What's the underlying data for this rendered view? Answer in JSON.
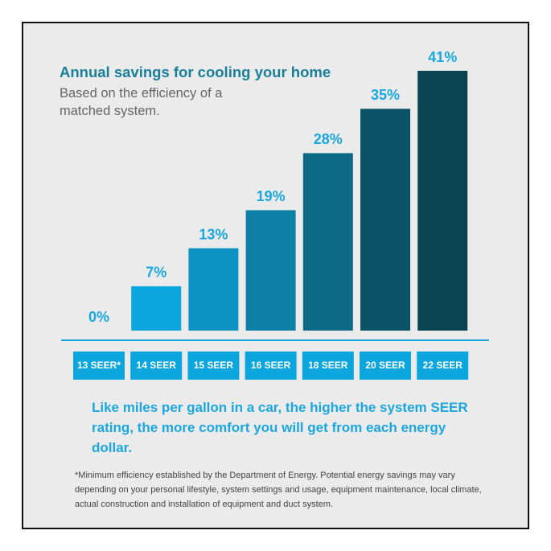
{
  "chart_data": {
    "type": "bar",
    "title": "Annual savings for cooling your home",
    "subtitle": "Based on the efficiency of a matched system.",
    "categories": [
      "13 SEER*",
      "14 SEER",
      "15 SEER",
      "16 SEER",
      "18 SEER",
      "20 SEER",
      "22 SEER"
    ],
    "values": [
      0,
      7,
      13,
      19,
      28,
      35,
      41
    ],
    "value_labels": [
      "0%",
      "7%",
      "13%",
      "19%",
      "28%",
      "35%",
      "41%"
    ],
    "colors": [
      "#0ca6df",
      "#0ca6df",
      "#0c92c3",
      "#0e7fa6",
      "#0d6985",
      "#0b5267",
      "#0a4352"
    ],
    "label_color": "#1ba7de",
    "annotation": "Like miles per gallon in a car, the higher the system SEER rating, the more comfort you will get from each energy dollar.",
    "footnote": "*Minimum efficiency established by the Department of Energy. Potential energy savings may vary depending on your personal lifestyle, system settings and usage, equipment maintenance, local climate, actual construction and installation of equipment and duct system."
  }
}
